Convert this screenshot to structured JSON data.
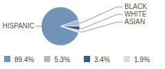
{
  "chart_data": {
    "type": "pie",
    "categories": [
      "HISPANIC",
      "BLACK",
      "WHITE",
      "ASIAN"
    ],
    "values": [
      89.4,
      5.3,
      3.4,
      1.9
    ],
    "value_labels": [
      "89.4%",
      "5.3%",
      "3.4%",
      "1.9%"
    ],
    "colors": [
      "#7093b7",
      "#a8bbd1",
      "#2f5d85",
      "#d3deea"
    ],
    "legend": "bottom"
  }
}
